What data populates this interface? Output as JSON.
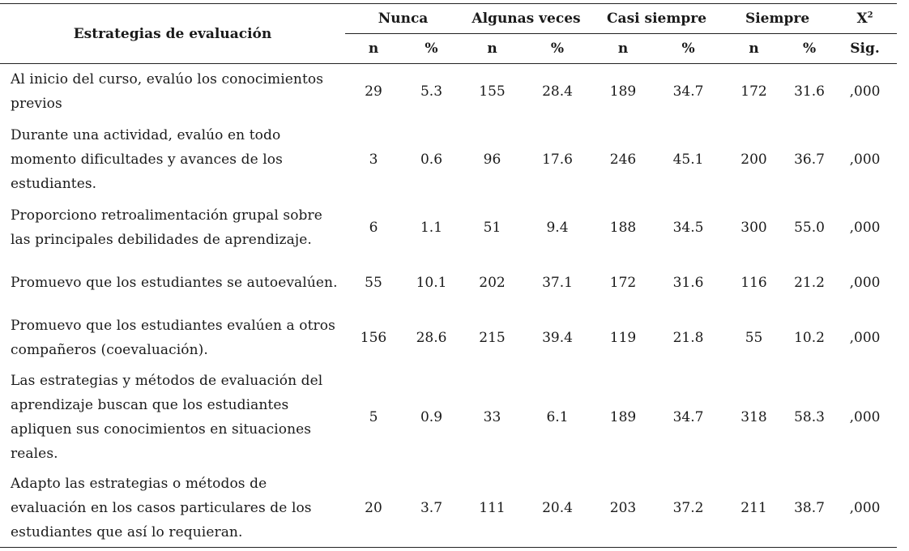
{
  "table": {
    "stub_header": "Estrategias de evaluación",
    "groups": [
      {
        "label": "Nunca"
      },
      {
        "label": "Algunas veces"
      },
      {
        "label": "Casi siempre"
      },
      {
        "label": "Siempre"
      }
    ],
    "chi_label": "X",
    "chi_sup": "2",
    "sub": {
      "n": "n",
      "pct": "%",
      "sig": "Sig."
    },
    "rows": [
      {
        "label": "Al inicio del curso, evalúo los conocimientos previos",
        "values": [
          "29",
          "5.3",
          "155",
          "28.4",
          "189",
          "34.7",
          "172",
          "31.6"
        ],
        "sig": ",000"
      },
      {
        "label": "Durante una actividad, evalúo en todo momento dificultades y avances de los estudiantes.",
        "values": [
          "3",
          "0.6",
          "96",
          "17.6",
          "246",
          "45.1",
          "200",
          "36.7"
        ],
        "sig": ",000"
      },
      {
        "label": "Proporciono retroalimentación grupal sobre las principales debilidades de aprendizaje.",
        "values": [
          "6",
          "1.1",
          "51",
          "9.4",
          "188",
          "34.5",
          "300",
          "55.0"
        ],
        "sig": ",000"
      },
      {
        "label": "Promuevo que los estudiantes se autoevalúen.",
        "values": [
          "55",
          "10.1",
          "202",
          "37.1",
          "172",
          "31.6",
          "116",
          "21.2"
        ],
        "sig": ",000"
      },
      {
        "label": "Promuevo que los estudiantes evalúen a otros compañeros (coevaluación).",
        "values": [
          "156",
          "28.6",
          "215",
          "39.4",
          "119",
          "21.8",
          "55",
          "10.2"
        ],
        "sig": ",000"
      },
      {
        "label": "Las estrategias y métodos de evaluación del aprendizaje buscan que los estudiantes apliquen sus conocimientos en situaciones reales.",
        "values": [
          "5",
          "0.9",
          "33",
          "6.1",
          "189",
          "34.7",
          "318",
          "58.3"
        ],
        "sig": ",000"
      },
      {
        "label": "Adapto las estrategias o métodos de evaluación en los casos particulares de los estudiantes que así lo requieran.",
        "values": [
          "20",
          "3.7",
          "111",
          "20.4",
          "203",
          "37.2",
          "211",
          "38.7"
        ],
        "sig": ",000"
      }
    ]
  }
}
